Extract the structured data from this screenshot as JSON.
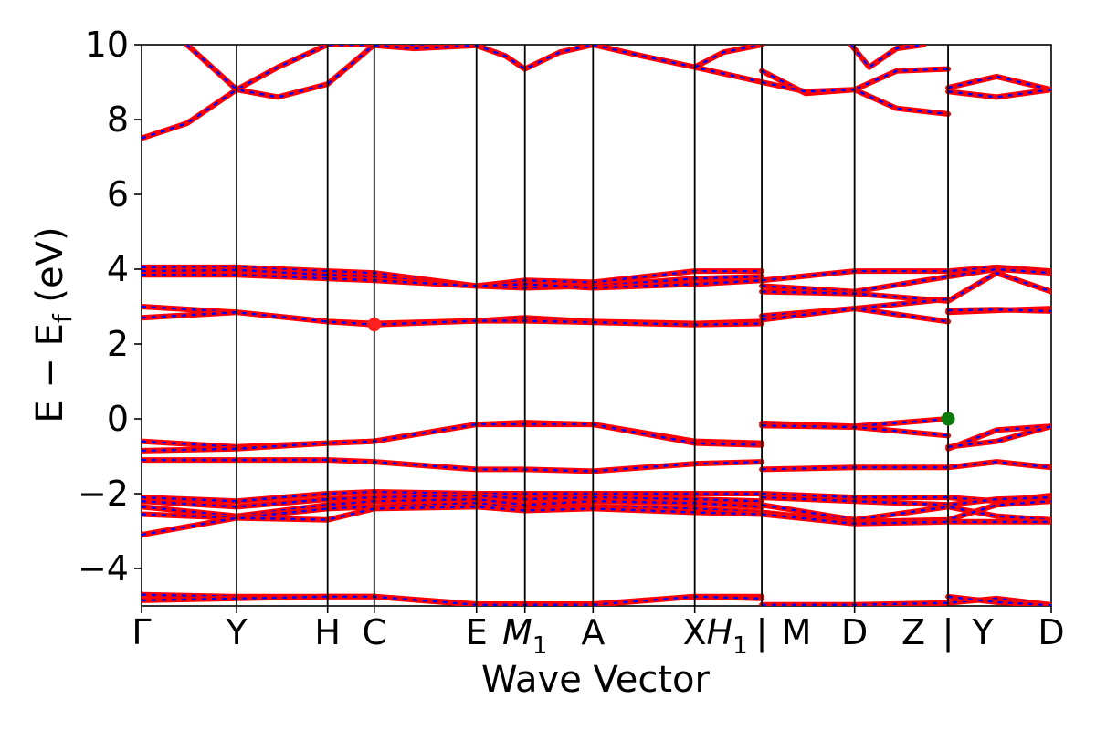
{
  "chart_data": {
    "type": "line",
    "xlabel": "Wave Vector",
    "ylabel": "E − E_f (eV)",
    "ylabel_parts": {
      "main": "E − E",
      "sub": "f",
      "tail": " (eV)"
    },
    "ylim": [
      -5,
      10
    ],
    "yticks": [
      10,
      8,
      6,
      4,
      2,
      0,
      -2,
      -4
    ],
    "ytick_labels": [
      "10",
      "8",
      "6",
      "4",
      "2",
      "0",
      "−2",
      "−4"
    ],
    "xlim": [
      0,
      1
    ],
    "kpoints": [
      {
        "label": "Γ",
        "x": 0.0
      },
      {
        "label": "Y",
        "x": 0.1045
      },
      {
        "label": "H",
        "x": 0.2045
      },
      {
        "label": "C",
        "x": 0.2558
      },
      {
        "label": "E",
        "x": 0.3682
      },
      {
        "label": "M",
        "sub": "1",
        "x": 0.4214
      },
      {
        "label": "A",
        "x": 0.4963
      },
      {
        "label": "X",
        "x": 0.6081
      },
      {
        "label": "H",
        "sub": "1",
        "x": 0.6818
      },
      {
        "label": "|",
        "x": 0.6818,
        "break": true
      },
      {
        "label": "M",
        "x": 0.6818
      },
      {
        "label": "D",
        "x": 0.7838
      },
      {
        "label": "Z",
        "x": 0.8866
      },
      {
        "label": "|",
        "x": 0.8866,
        "break": true
      },
      {
        "label": "Y",
        "x": 0.8866
      },
      {
        "label": "D",
        "x": 1.0
      }
    ],
    "vlines": [
      0.1045,
      0.2045,
      0.2558,
      0.3682,
      0.4214,
      0.4963,
      0.6081,
      0.6818,
      0.7838,
      0.8866
    ],
    "markers": [
      {
        "name": "cbm-point",
        "x": 0.2558,
        "y": 2.52,
        "color": "#ff2020"
      },
      {
        "name": "vbm-point",
        "x": 0.8866,
        "y": 0.0,
        "color": "#0a7a0a"
      }
    ],
    "colors": {
      "line_a": "#ff0000",
      "line_b": "#0000ff"
    },
    "bands": [
      {
        "x": [
          0,
          0.05,
          0.1045,
          0.15,
          0.2045,
          0.2558,
          0.3,
          0.3682
        ],
        "y": [
          7.5,
          7.9,
          8.8,
          9.4,
          10.0,
          10.0,
          10.0,
          10.0
        ]
      },
      {
        "x": [
          0.05,
          0.1045,
          0.15,
          0.2045,
          0.2558
        ],
        "y": [
          10.0,
          8.8,
          8.6,
          8.95,
          10.0
        ]
      },
      {
        "x": [
          0.2558,
          0.3,
          0.3682,
          0.4,
          0.4214,
          0.46,
          0.4963
        ],
        "y": [
          9.98,
          9.9,
          9.98,
          9.7,
          9.35,
          9.8,
          10.0
        ]
      },
      {
        "x": [
          0.4963,
          0.55,
          0.6081,
          0.6818
        ],
        "y": [
          10.0,
          9.7,
          9.4,
          9.0
        ]
      },
      {
        "x": [
          0.6081,
          0.64,
          0.6818
        ],
        "y": [
          9.4,
          9.8,
          10.0
        ]
      },
      {
        "x": [
          0.6818,
          0.73,
          0.7838,
          0.83,
          0.8866
        ],
        "y": [
          9.3,
          8.7,
          8.8,
          9.3,
          9.35
        ]
      },
      {
        "x": [
          0.6818,
          0.73,
          0.7838,
          0.83,
          0.8866
        ],
        "y": [
          9.0,
          8.75,
          8.8,
          8.3,
          8.15
        ]
      },
      {
        "x": [
          0.78,
          0.8,
          0.83,
          0.86
        ],
        "y": [
          10.0,
          9.4,
          9.9,
          10.0
        ]
      },
      {
        "x": [
          0.8866,
          0.94,
          1.0
        ],
        "y": [
          8.85,
          9.15,
          8.8
        ]
      },
      {
        "x": [
          0.8866,
          0.94,
          1.0
        ],
        "y": [
          8.75,
          8.6,
          8.8
        ]
      },
      {
        "x": [
          0,
          0.1045,
          0.2045,
          0.2558,
          0.3682,
          0.4214,
          0.4963,
          0.6081,
          0.6818
        ],
        "y": [
          4.05,
          4.05,
          3.95,
          3.9,
          3.55,
          3.7,
          3.65,
          3.95,
          3.95
        ]
      },
      {
        "x": [
          0,
          0.1045,
          0.2045,
          0.2558,
          0.3682,
          0.4214,
          0.4963,
          0.6081,
          0.6818
        ],
        "y": [
          3.95,
          3.98,
          3.85,
          3.8,
          3.55,
          3.5,
          3.55,
          3.75,
          3.8
        ]
      },
      {
        "x": [
          0,
          0.1045,
          0.2045,
          0.2558,
          0.3682,
          0.4214,
          0.4963,
          0.6081,
          0.6818
        ],
        "y": [
          3.85,
          3.85,
          3.75,
          3.7,
          3.55,
          3.6,
          3.5,
          3.6,
          3.7
        ]
      },
      {
        "x": [
          0,
          0.1045,
          0.2045,
          0.2558,
          0.3682,
          0.4214,
          0.4963,
          0.6081,
          0.6818
        ],
        "y": [
          3.0,
          2.85,
          2.6,
          2.55,
          2.62,
          2.7,
          2.6,
          2.55,
          2.6
        ]
      },
      {
        "x": [
          0,
          0.1045,
          0.2045,
          0.2558,
          0.3682,
          0.4214,
          0.4963,
          0.6081,
          0.6818
        ],
        "y": [
          2.7,
          2.85,
          2.6,
          2.52,
          2.62,
          2.62,
          2.58,
          2.52,
          2.55
        ]
      },
      {
        "x": [
          0.6818,
          0.7838,
          0.8866,
          0.94,
          1.0
        ],
        "y": [
          3.7,
          3.95,
          3.95,
          4.05,
          3.95
        ]
      },
      {
        "x": [
          0.6818,
          0.7838,
          0.8866,
          0.94,
          1.0
        ],
        "y": [
          3.55,
          3.4,
          3.8,
          4.0,
          3.9
        ]
      },
      {
        "x": [
          0.6818,
          0.7838,
          0.8866,
          0.94,
          1.0
        ],
        "y": [
          3.4,
          3.35,
          3.15,
          3.9,
          3.4
        ]
      },
      {
        "x": [
          0.6818,
          0.7838,
          0.8866
        ],
        "y": [
          2.75,
          2.95,
          3.2
        ]
      },
      {
        "x": [
          0.6818,
          0.7838,
          0.8866
        ],
        "y": [
          2.65,
          2.95,
          2.6
        ]
      },
      {
        "x": [
          0.8866,
          0.94,
          1.0
        ],
        "y": [
          2.85,
          2.9,
          2.95
        ]
      },
      {
        "x": [
          0.8866,
          0.94,
          1.0
        ],
        "y": [
          2.9,
          2.92,
          2.88
        ]
      },
      {
        "x": [
          0,
          0.1045,
          0.2045,
          0.2558,
          0.3682,
          0.4214,
          0.4963,
          0.6081,
          0.6818
        ],
        "y": [
          -0.6,
          -0.75,
          -0.65,
          -0.6,
          -0.15,
          -0.1,
          -0.15,
          -0.6,
          -0.65
        ]
      },
      {
        "x": [
          0,
          0.1045,
          0.2045,
          0.2558,
          0.3682,
          0.4214,
          0.4963,
          0.6081,
          0.6818
        ],
        "y": [
          -0.85,
          -0.8,
          -0.65,
          -0.6,
          -0.15,
          -0.15,
          -0.15,
          -0.65,
          -0.7
        ]
      },
      {
        "x": [
          0,
          0.1045,
          0.2045,
          0.2558,
          0.3682,
          0.4214,
          0.4963,
          0.6081,
          0.6818
        ],
        "y": [
          -1.1,
          -1.1,
          -1.1,
          -1.15,
          -1.35,
          -1.35,
          -1.4,
          -1.2,
          -1.15
        ]
      },
      {
        "x": [
          0.6818,
          0.7838,
          0.8866
        ],
        "y": [
          -0.12,
          -0.2,
          0.0
        ]
      },
      {
        "x": [
          0.6818,
          0.7838,
          0.8866
        ],
        "y": [
          -0.18,
          -0.22,
          -0.45
        ]
      },
      {
        "x": [
          0.8866,
          0.94,
          1.0
        ],
        "y": [
          -0.8,
          -0.3,
          -0.2
        ]
      },
      {
        "x": [
          0.8866,
          0.94,
          1.0
        ],
        "y": [
          -0.75,
          -0.6,
          -0.2
        ]
      },
      {
        "x": [
          0.6818,
          0.7838,
          0.8866,
          0.94,
          1.0
        ],
        "y": [
          -1.35,
          -1.3,
          -1.3,
          -1.15,
          -1.3
        ]
      },
      {
        "x": [
          0,
          0.1045,
          0.2045,
          0.2558,
          0.3682,
          0.4214,
          0.4963,
          0.6081,
          0.6818
        ],
        "y": [
          -2.1,
          -2.2,
          -2.0,
          -1.95,
          -2.0,
          -2.0,
          -2.0,
          -2.0,
          -2.0
        ]
      },
      {
        "x": [
          0,
          0.1045,
          0.2045,
          0.2558,
          0.3682,
          0.4214,
          0.4963,
          0.6081,
          0.6818
        ],
        "y": [
          -2.2,
          -2.35,
          -2.15,
          -2.1,
          -2.05,
          -2.15,
          -2.1,
          -2.15,
          -2.2
        ]
      },
      {
        "x": [
          0,
          0.1045,
          0.2045,
          0.2558,
          0.3682,
          0.4214,
          0.4963,
          0.6081,
          0.6818
        ],
        "y": [
          -2.35,
          -2.6,
          -2.3,
          -2.2,
          -2.15,
          -2.3,
          -2.2,
          -2.25,
          -2.35
        ]
      },
      {
        "x": [
          0,
          0.1045,
          0.2045,
          0.2558,
          0.3682,
          0.4214,
          0.4963,
          0.6081,
          0.6818
        ],
        "y": [
          -2.55,
          -2.65,
          -2.4,
          -2.35,
          -2.25,
          -2.4,
          -2.35,
          -2.4,
          -2.5
        ]
      },
      {
        "x": [
          0,
          0.1045,
          0.2045,
          0.2558,
          0.3682,
          0.4214,
          0.4963,
          0.6081,
          0.6818
        ],
        "y": [
          -3.1,
          -2.65,
          -2.7,
          -2.4,
          -2.35,
          -2.45,
          -2.4,
          -2.5,
          -2.55
        ]
      },
      {
        "x": [
          0.6818,
          0.7838,
          0.8866,
          0.94,
          1.0
        ],
        "y": [
          -2.0,
          -2.1,
          -2.1,
          -2.2,
          -2.05
        ]
      },
      {
        "x": [
          0.6818,
          0.7838,
          0.8866,
          0.94,
          1.0
        ],
        "y": [
          -2.1,
          -2.2,
          -2.3,
          -2.15,
          -2.1
        ]
      },
      {
        "x": [
          0.6818,
          0.7838,
          0.8866,
          0.94,
          1.0
        ],
        "y": [
          -2.3,
          -2.7,
          -2.35,
          -2.6,
          -2.7
        ]
      },
      {
        "x": [
          0.6818,
          0.7838,
          0.8866,
          0.94,
          1.0
        ],
        "y": [
          -2.5,
          -2.75,
          -2.7,
          -2.3,
          -2.2
        ]
      },
      {
        "x": [
          0.6818,
          0.7838,
          0.8866,
          0.94,
          1.0
        ],
        "y": [
          -2.55,
          -2.8,
          -2.75,
          -2.75,
          -2.75
        ]
      },
      {
        "x": [
          0,
          0.1045,
          0.2045,
          0.2558,
          0.3682,
          0.4214,
          0.4963,
          0.6081,
          0.6818
        ],
        "y": [
          -4.7,
          -4.75,
          -4.75,
          -4.75,
          -4.95,
          -4.95,
          -4.95,
          -4.75,
          -4.75
        ]
      },
      {
        "x": [
          0,
          0.1045,
          0.2045,
          0.2558,
          0.3682,
          0.4214,
          0.4963,
          0.6081,
          0.6818
        ],
        "y": [
          -4.85,
          -4.8,
          -4.75,
          -4.75,
          -4.97,
          -4.97,
          -4.97,
          -4.75,
          -4.8
        ]
      },
      {
        "x": [
          0.6818,
          0.7838,
          0.8866,
          0.94,
          1.0
        ],
        "y": [
          -4.97,
          -4.97,
          -4.92,
          -4.8,
          -4.97
        ]
      },
      {
        "x": [
          0.8866,
          0.94,
          1.0
        ],
        "y": [
          -4.75,
          -4.9,
          -4.98
        ]
      }
    ]
  }
}
